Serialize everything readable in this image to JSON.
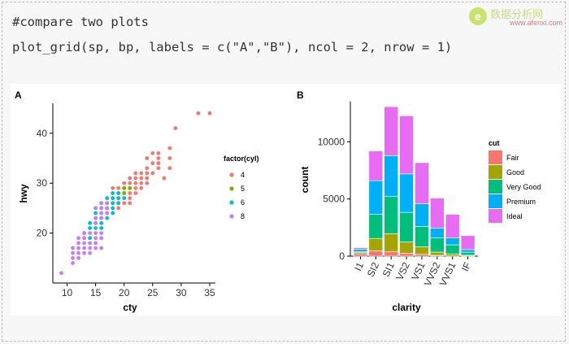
{
  "code": {
    "line1": "#compare two plots",
    "line2": "plot_grid(sp, bp, labels = c(\"A\",\"B\"), ncol = 2, nrow = 1)"
  },
  "watermark": {
    "logo_letter": "e",
    "title": "数据分析网",
    "url": "www.afenxi.com"
  },
  "chart_data": [
    {
      "type": "scatter",
      "panel_label": "A",
      "xlabel": "cty",
      "ylabel": "hwy",
      "xlim": [
        7.5,
        36
      ],
      "ylim": [
        10,
        46
      ],
      "xticks": [
        10,
        15,
        20,
        25,
        30,
        35
      ],
      "yticks": [
        20,
        30,
        40
      ],
      "grid": false,
      "legend_title": "factor(cyl)",
      "legend_position": "right",
      "series": [
        {
          "name": "4",
          "color": "#F8766D",
          "points": [
            [
              33,
              44
            ],
            [
              35,
              44
            ],
            [
              29,
              41
            ],
            [
              28,
              37
            ],
            [
              25,
              36
            ],
            [
              26,
              36
            ],
            [
              24,
              35
            ],
            [
              26,
              35
            ],
            [
              21,
              31
            ],
            [
              22,
              31
            ],
            [
              23,
              32
            ],
            [
              24,
              33
            ],
            [
              20,
              30
            ],
            [
              21,
              29
            ],
            [
              21,
              30
            ],
            [
              22,
              30
            ],
            [
              20,
              29
            ],
            [
              23,
              31
            ],
            [
              24,
              32
            ],
            [
              25,
              34
            ],
            [
              28,
              33
            ],
            [
              26,
              34
            ],
            [
              19,
              29
            ],
            [
              22,
              32
            ],
            [
              21,
              28
            ],
            [
              24,
              31
            ],
            [
              19,
              28
            ],
            [
              21,
              27
            ],
            [
              20,
              26
            ],
            [
              23,
              30
            ],
            [
              22,
              29
            ],
            [
              25,
              32
            ],
            [
              20,
              28
            ],
            [
              19,
              27
            ],
            [
              18,
              27
            ],
            [
              26,
              33
            ],
            [
              27,
              31
            ],
            [
              28,
              35
            ],
            [
              19,
              26
            ],
            [
              20,
              27
            ],
            [
              18,
              26
            ],
            [
              17,
              25
            ],
            [
              21,
              26
            ],
            [
              22,
              28
            ],
            [
              23,
              29
            ],
            [
              24,
              30
            ],
            [
              18,
              29
            ],
            [
              19,
              25
            ]
          ]
        },
        {
          "name": "5",
          "color": "#7CAE00",
          "points": [
            [
              20,
              28
            ],
            [
              20,
              29
            ],
            [
              21,
              29
            ],
            [
              20,
              29
            ]
          ]
        },
        {
          "name": "6",
          "color": "#00BFC4",
          "points": [
            [
              15,
              23
            ],
            [
              16,
              24
            ],
            [
              17,
              25
            ],
            [
              18,
              26
            ],
            [
              19,
              26
            ],
            [
              18,
              27
            ],
            [
              17,
              26
            ],
            [
              16,
              26
            ],
            [
              15,
              24
            ],
            [
              16,
              25
            ],
            [
              17,
              24
            ],
            [
              18,
              25
            ],
            [
              19,
              27
            ],
            [
              14,
              22
            ],
            [
              15,
              22
            ],
            [
              16,
              23
            ],
            [
              17,
              23
            ],
            [
              18,
              24
            ],
            [
              16,
              22
            ],
            [
              15,
              25
            ],
            [
              17,
              27
            ],
            [
              18,
              28
            ],
            [
              19,
              28
            ],
            [
              14,
              21
            ],
            [
              13,
              20
            ],
            [
              15,
              21
            ],
            [
              16,
              21
            ],
            [
              13,
              19
            ],
            [
              14,
              19
            ],
            [
              20,
              27
            ]
          ]
        },
        {
          "name": "8",
          "color": "#C77CFF",
          "points": [
            [
              9,
              12
            ],
            [
              11,
              14
            ],
            [
              11,
              15
            ],
            [
              12,
              15
            ],
            [
              12,
              16
            ],
            [
              13,
              16
            ],
            [
              13,
              17
            ],
            [
              14,
              17
            ],
            [
              11,
              16
            ],
            [
              11,
              17
            ],
            [
              12,
              17
            ],
            [
              12,
              18
            ],
            [
              13,
              18
            ],
            [
              14,
              18
            ],
            [
              15,
              19
            ],
            [
              14,
              20
            ],
            [
              15,
              20
            ],
            [
              16,
              20
            ],
            [
              13,
              19
            ],
            [
              15,
              17
            ],
            [
              16,
              17
            ],
            [
              14,
              16
            ],
            [
              15,
              18
            ],
            [
              16,
              19
            ],
            [
              15,
              22
            ],
            [
              16,
              23
            ],
            [
              16,
              24
            ],
            [
              15,
              25
            ],
            [
              17,
              25
            ],
            [
              16,
              25
            ],
            [
              16,
              26
            ],
            [
              17,
              26
            ],
            [
              12,
              19
            ],
            [
              13,
              20
            ],
            [
              15,
              23
            ],
            [
              17,
              24
            ]
          ]
        }
      ]
    },
    {
      "type": "bar",
      "stacked": true,
      "panel_label": "B",
      "xlabel": "clarity",
      "ylabel": "count",
      "ylim": [
        0,
        13500
      ],
      "yticks": [
        0,
        5000,
        10000
      ],
      "grid": false,
      "categories": [
        "I1",
        "SI2",
        "SI1",
        "VS2",
        "VS1",
        "VVS2",
        "VVS1",
        "IF"
      ],
      "legend_title": "cut",
      "legend_position": "right",
      "series": [
        {
          "name": "Fair",
          "color": "#F8766D",
          "values": [
            210,
            466,
            408,
            261,
            170,
            69,
            17,
            9
          ]
        },
        {
          "name": "Good",
          "color": "#A3A500",
          "values": [
            96,
            1081,
            1560,
            978,
            648,
            286,
            186,
            71
          ]
        },
        {
          "name": "Very Good",
          "color": "#00BF7D",
          "values": [
            84,
            2100,
            3240,
            2591,
            1775,
            1235,
            789,
            268
          ]
        },
        {
          "name": "Premium",
          "color": "#00B0F6",
          "values": [
            205,
            2949,
            3575,
            3357,
            1989,
            870,
            616,
            230
          ]
        },
        {
          "name": "Ideal",
          "color": "#E76BF3",
          "values": [
            146,
            2598,
            4282,
            5071,
            3589,
            2606,
            2047,
            1212
          ]
        }
      ]
    }
  ]
}
